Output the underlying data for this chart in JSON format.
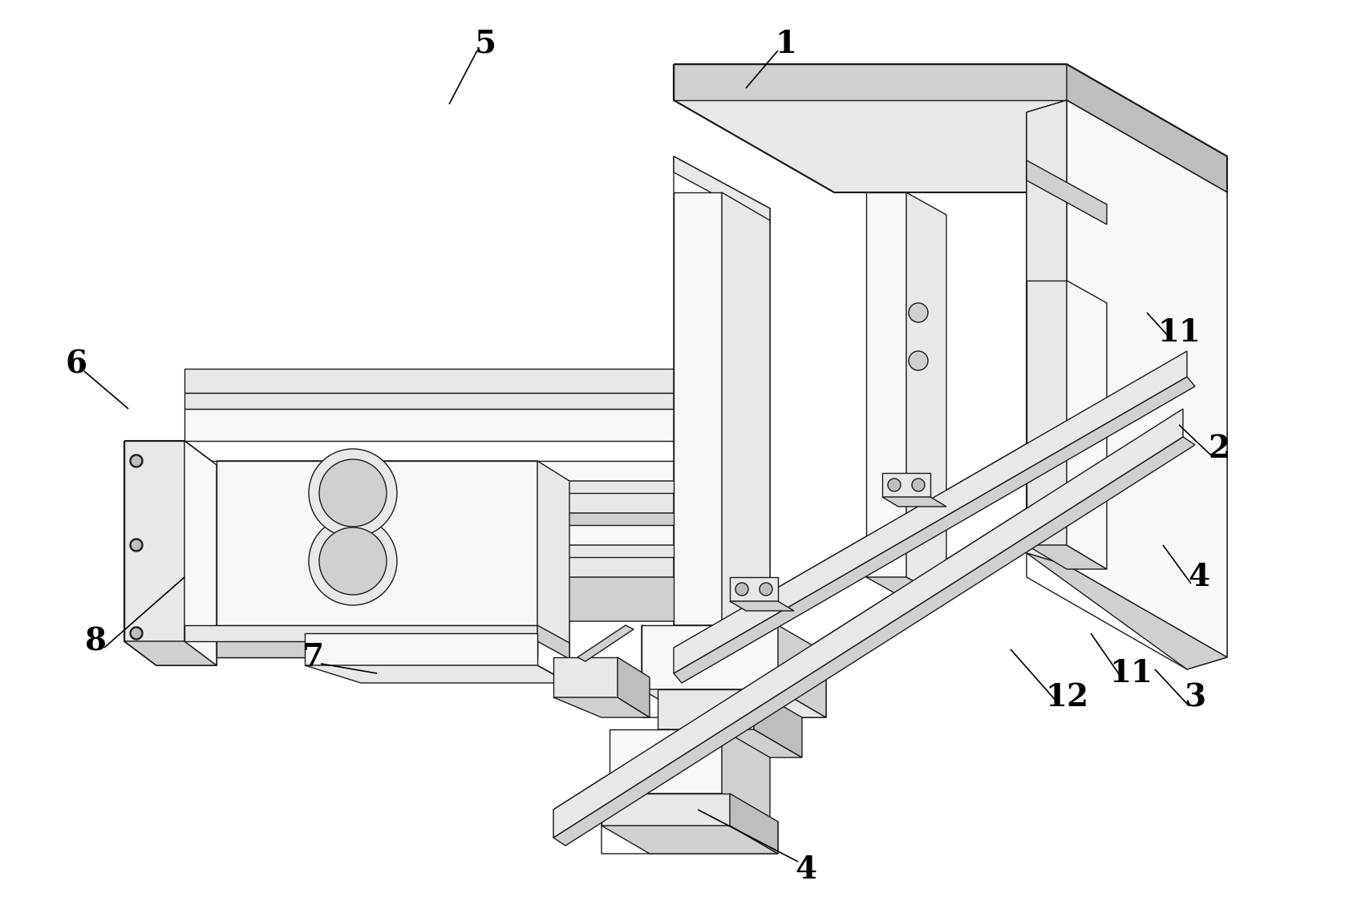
{
  "background_color": "#ffffff",
  "line_color": "#1a1a1a",
  "light_fill": "#f8f8f8",
  "mid_fill": "#e8e8e8",
  "dark_fill": "#d0d0d0",
  "darker_fill": "#bebebe",
  "fig_width": 16.83,
  "fig_height": 11.39,
  "dpi": 100,
  "lw": 1.0,
  "tlw": 1.5
}
